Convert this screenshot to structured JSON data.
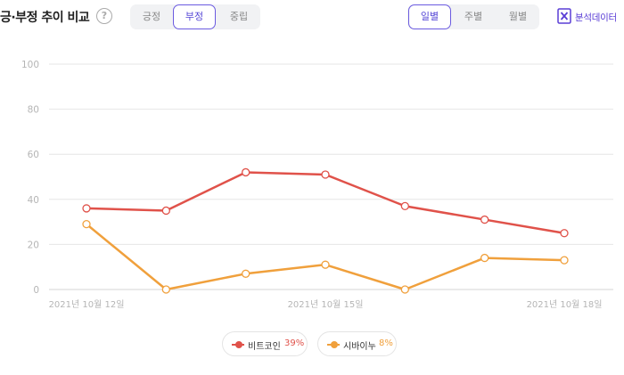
{
  "header": {
    "title": "긍·부정 추이 비교",
    "help_icon": "?",
    "sentiment_tabs": [
      {
        "label": "긍정",
        "active": false
      },
      {
        "label": "부정",
        "active": true
      },
      {
        "label": "중립",
        "active": false
      }
    ],
    "period_tabs": [
      {
        "label": "일별",
        "active": true
      },
      {
        "label": "주별",
        "active": false
      },
      {
        "label": "월별",
        "active": false
      }
    ],
    "export_label": "분석데이터",
    "export_icon": "excel-icon"
  },
  "colors": {
    "accent": "#5546d6",
    "series_bitcoin": "#e0524a",
    "series_shiba": "#f0a03c"
  },
  "chart_data": {
    "type": "line",
    "x": [
      "2021-10-12",
      "2021-10-13",
      "2021-10-14",
      "2021-10-15",
      "2021-10-16",
      "2021-10-17",
      "2021-10-18"
    ],
    "x_tick_labels": [
      {
        "index": 0,
        "label": "2021년 10월 12일"
      },
      {
        "index": 3,
        "label": "2021년 10월 15일"
      },
      {
        "index": 6,
        "label": "2021년 10월 18일"
      }
    ],
    "y_ticks": [
      0,
      20,
      40,
      60,
      80,
      100
    ],
    "ylim": [
      0,
      100
    ],
    "grid": true,
    "legend_position": "bottom-center",
    "series": [
      {
        "name": "비트코인",
        "percent": "39%",
        "color": "#e0524a",
        "values": [
          36,
          35,
          52,
          51,
          37,
          31,
          25
        ]
      },
      {
        "name": "시바이누",
        "percent": "8%",
        "color": "#f0a03c",
        "values": [
          29,
          0,
          7,
          11,
          0,
          14,
          13
        ]
      }
    ]
  }
}
